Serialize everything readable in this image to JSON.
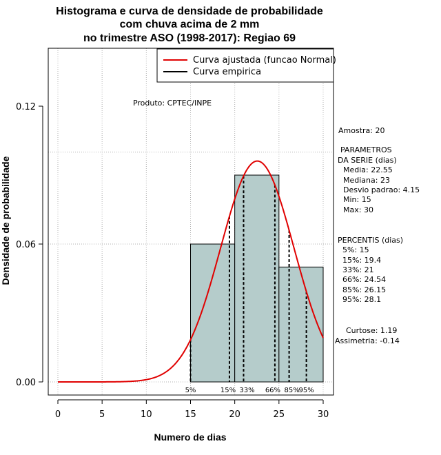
{
  "chart_data": {
    "type": "bar",
    "title_lines": [
      "Histograma e curva de densidade de probabilidade",
      "com chuva acima de 2 mm",
      "no trimestre ASO (1998-2017): Regiao 69"
    ],
    "xlabel": "Numero de dias",
    "ylabel": "Densidade de probabilidade",
    "xlim": [
      -1,
      31
    ],
    "ylim": [
      -0.006,
      0.145
    ],
    "xticks": [
      0,
      5,
      10,
      15,
      20,
      25,
      30
    ],
    "yticks": [
      0.0,
      0.06,
      0.12
    ],
    "ytick_labels": [
      "0.00",
      "0.06",
      "0.12"
    ],
    "hgrid": [
      0.06,
      0.1
    ],
    "histogram": [
      {
        "from": 15,
        "to": 20,
        "density": 0.06
      },
      {
        "from": 20,
        "to": 25,
        "density": 0.09
      },
      {
        "from": 25,
        "to": 30,
        "density": 0.05
      }
    ],
    "normal_curve": {
      "mean": 22.55,
      "sd": 4.15,
      "x_from": 0,
      "x_to": 30
    },
    "percentile_lines": [
      {
        "label": "5%",
        "x": 15
      },
      {
        "label": "15%",
        "x": 19.4
      },
      {
        "label": "33%",
        "x": 21
      },
      {
        "label": "66%",
        "x": 24.54
      },
      {
        "label": "85%",
        "x": 26.15
      },
      {
        "label": "95%",
        "x": 28.1
      }
    ],
    "legend": {
      "position": "top-right",
      "entries": [
        {
          "label": "Curva ajustada (funcao Normal)",
          "color": "#e00000"
        },
        {
          "label": "Curva empirica",
          "color": "#000000"
        }
      ]
    },
    "product_label": "Produto: CPTEC/INPE",
    "colors": {
      "bar_fill": "#b5cccb",
      "curve": "#e00000",
      "grid": "#b0b0b0"
    }
  },
  "side_panel": {
    "amostra": "Amostra: 20",
    "param_title_1": "PARAMETROS",
    "param_title_2": "DA SERIE (dias)",
    "params": [
      "Media: 22.55",
      "Mediana: 23",
      "Desvio padrao: 4.15",
      "Min: 15",
      "Max: 30"
    ],
    "percentis_title": "PERCENTIS (dias)",
    "percentis": [
      "5%: 15",
      "15%: 19.4",
      "33%: 21",
      "66%: 24.54",
      "85%: 26.15",
      "95%: 28.1"
    ],
    "curtose": "Curtose: 1.19",
    "assimetria": "Assimetria: -0.14"
  }
}
